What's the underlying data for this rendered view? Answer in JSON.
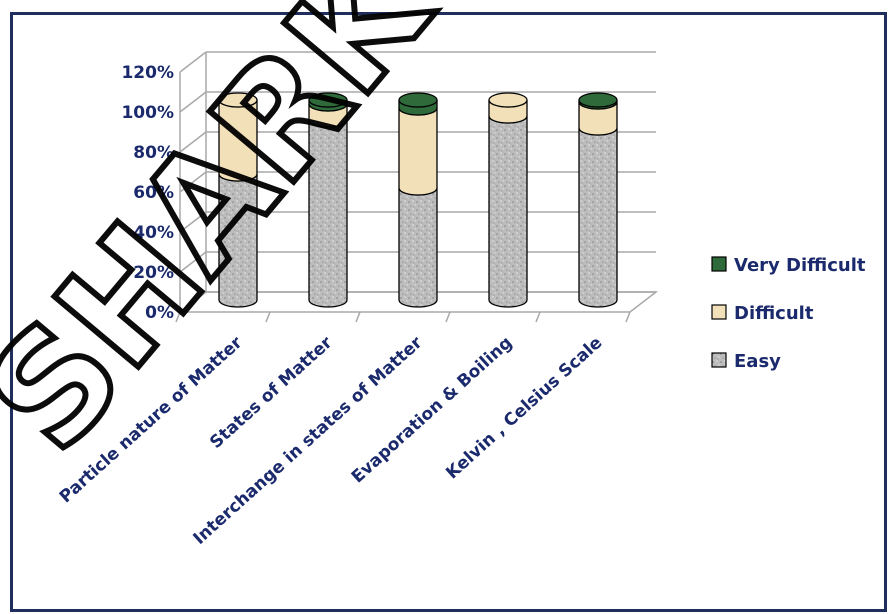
{
  "chart_data": {
    "type": "bar",
    "stacked": true,
    "style": "3d-cylinder",
    "title": "",
    "xlabel": "",
    "ylabel": "",
    "ylim": [
      0,
      120
    ],
    "y_ticks": [
      "0%",
      "20%",
      "40%",
      "60%",
      "80%",
      "100%",
      "120%"
    ],
    "grid": true,
    "legend_position": "right",
    "categories": [
      "Particle nature of Matter",
      "States of Matter",
      "Interchange in states of Matter",
      "Evaporation & Boiling",
      "Kelvin , Celsius Scale"
    ],
    "series": [
      {
        "name": "Easy",
        "color": "#b8b8b8",
        "values": [
          63,
          90,
          56,
          92,
          86
        ]
      },
      {
        "name": "Difficult",
        "color": "#f2e0b8",
        "values": [
          37,
          8,
          40,
          8,
          13
        ]
      },
      {
        "name": "Very Difficult",
        "color": "#2e6a3a",
        "values": [
          0,
          2,
          4,
          0,
          1
        ]
      }
    ],
    "watermark": "SHARK"
  }
}
